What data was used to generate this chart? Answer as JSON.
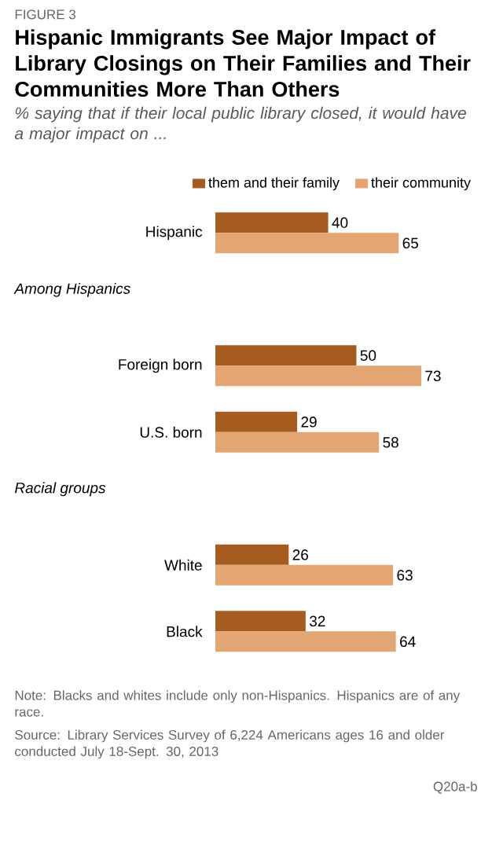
{
  "chart_data": {
    "type": "bar",
    "orientation": "horizontal",
    "title": "Hispanic Immigrants See Major Impact of Library Closings on Their Families and Their Communities More Than Others",
    "subtitle": "% saying that if their local public library closed, it would have a major impact on ...",
    "categories": [
      "Hispanic",
      "Foreign born",
      "U.S. born",
      "White",
      "Black"
    ],
    "series": [
      {
        "name": "them and their family",
        "color": "#a65c1f",
        "values": [
          40,
          50,
          29,
          26,
          32
        ]
      },
      {
        "name": "their community",
        "color": "#e3a673",
        "values": [
          65,
          73,
          58,
          63,
          64
        ]
      }
    ],
    "data_labels": true,
    "legend": "top",
    "annotations": [
      "FIGURE 3",
      "Among Hispanics",
      "Racial groups",
      "Note: Blacks and whites include only non-Hispanics. Hispanics are of any race.",
      "Source: Library Services Survey of 6,224 Americans ages 16 and older conducted July 18-Sept. 30, 2013",
      "Q20a-b"
    ]
  }
}
